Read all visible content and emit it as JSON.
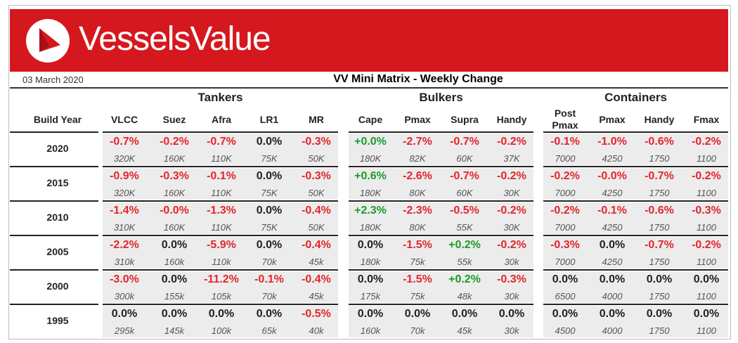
{
  "header": {
    "logo_text": "VesselsValue",
    "date": "03 March 2020",
    "title": "VV Mini Matrix - Weekly Change"
  },
  "table": {
    "row_header": "Build Year",
    "groups": [
      {
        "name": "Tankers",
        "columns": [
          "VLCC",
          "Suez",
          "Afra",
          "LR1",
          "MR"
        ]
      },
      {
        "name": "Bulkers",
        "columns": [
          "Cape",
          "Pmax",
          "Supra",
          "Handy"
        ]
      },
      {
        "name": "Containers",
        "columns": [
          "Post Pmax",
          "Pmax",
          "Handy",
          "Fmax"
        ]
      }
    ],
    "rows": [
      {
        "year": "2020",
        "changes": [
          "-0.7%",
          "-0.2%",
          "-0.7%",
          "0.0%",
          "-0.3%",
          "+0.0%",
          "-2.7%",
          "-0.7%",
          "-0.2%",
          "-0.1%",
          "-1.0%",
          "-0.6%",
          "-0.2%"
        ],
        "values": [
          "320K",
          "160K",
          "110K",
          "75K",
          "50K",
          "180K",
          "82K",
          "60K",
          "37K",
          "7000",
          "4250",
          "1750",
          "1100"
        ]
      },
      {
        "year": "2015",
        "changes": [
          "-0.9%",
          "-0.3%",
          "-0.1%",
          "0.0%",
          "-0.3%",
          "+0.6%",
          "-2.6%",
          "-0.7%",
          "-0.2%",
          "-0.2%",
          "-0.0%",
          "-0.7%",
          "-0.2%"
        ],
        "values": [
          "320K",
          "160K",
          "110K",
          "75K",
          "50K",
          "180K",
          "80K",
          "60K",
          "30K",
          "7000",
          "4250",
          "1750",
          "1100"
        ]
      },
      {
        "year": "2010",
        "changes": [
          "-1.4%",
          "-0.0%",
          "-1.3%",
          "0.0%",
          "-0.4%",
          "+2.3%",
          "-2.3%",
          "-0.5%",
          "-0.2%",
          "-0.2%",
          "-0.1%",
          "-0.6%",
          "-0.3%"
        ],
        "values": [
          "310K",
          "160K",
          "110K",
          "75K",
          "50K",
          "180K",
          "80K",
          "55K",
          "30K",
          "7000",
          "4250",
          "1750",
          "1100"
        ]
      },
      {
        "year": "2005",
        "changes": [
          "-2.2%",
          "0.0%",
          "-5.9%",
          "0.0%",
          "-0.4%",
          "0.0%",
          "-1.5%",
          "+0.2%",
          "-0.2%",
          "-0.3%",
          "0.0%",
          "-0.7%",
          "-0.2%"
        ],
        "values": [
          "310k",
          "160k",
          "110k",
          "70k",
          "45k",
          "180k",
          "75k",
          "55k",
          "30k",
          "7000",
          "4250",
          "1750",
          "1100"
        ]
      },
      {
        "year": "2000",
        "changes": [
          "-3.0%",
          "0.0%",
          "-11.2%",
          "-0.1%",
          "-0.4%",
          "0.0%",
          "-1.5%",
          "+0.2%",
          "-0.3%",
          "0.0%",
          "0.0%",
          "0.0%",
          "0.0%"
        ],
        "values": [
          "300k",
          "155k",
          "105k",
          "70k",
          "45k",
          "175k",
          "75k",
          "48k",
          "30k",
          "6500",
          "4000",
          "1750",
          "1100"
        ]
      },
      {
        "year": "1995",
        "changes": [
          "0.0%",
          "0.0%",
          "0.0%",
          "0.0%",
          "-0.5%",
          "0.0%",
          "0.0%",
          "0.0%",
          "0.0%",
          "0.0%",
          "0.0%",
          "0.0%",
          "0.0%"
        ],
        "values": [
          "295k",
          "145k",
          "100k",
          "65k",
          "40k",
          "160k",
          "70k",
          "45k",
          "30k",
          "4500",
          "4000",
          "1750",
          "1100"
        ]
      }
    ]
  }
}
